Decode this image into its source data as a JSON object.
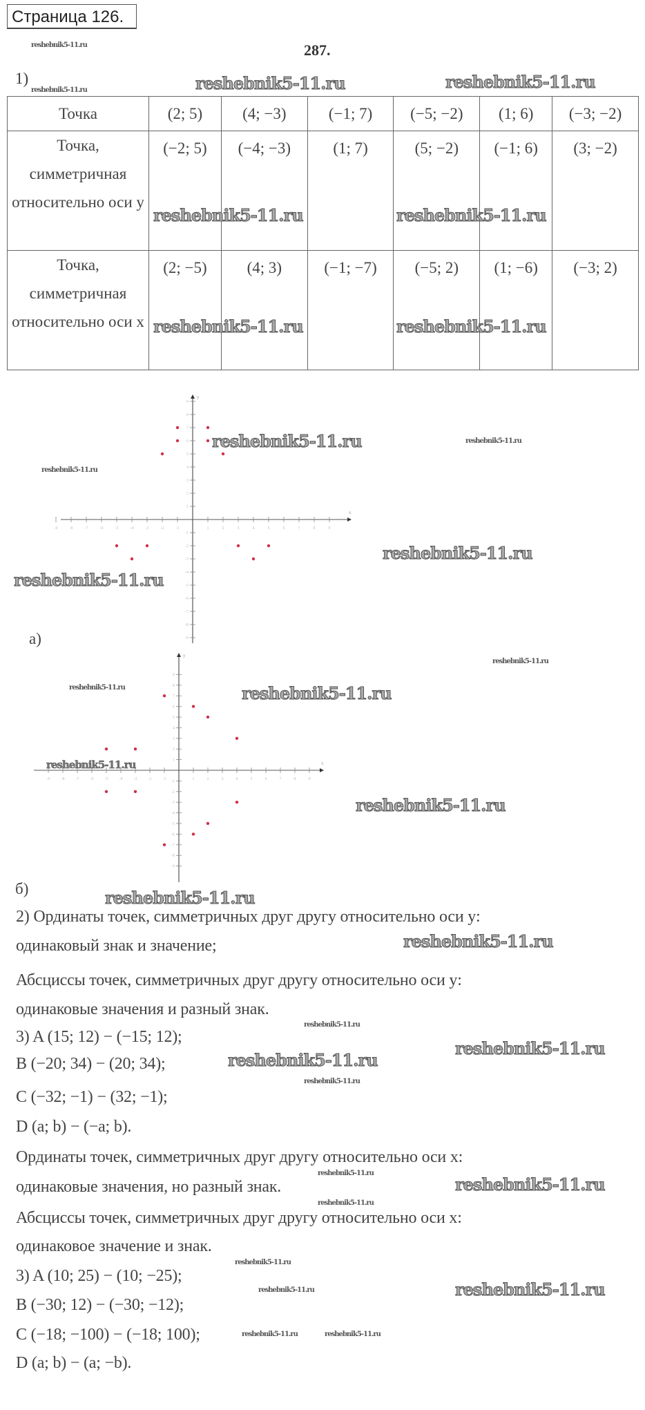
{
  "header": {
    "page_title": "Страница 126.",
    "task_number": "287."
  },
  "part1": {
    "label": "1)",
    "table": {
      "row_headers": [
        "Точка",
        "Точка, симметричная относительно оси y",
        "Точка, симметричная относительно оси x"
      ],
      "rows": [
        [
          "(2; 5)",
          "(4; −3)",
          "(−1; 7)",
          "(−5; −2)",
          "(1; 6)",
          "(−3; −2)"
        ],
        [
          "(−2; 5)",
          "(−4; −3)",
          "(1; 7)",
          "(5; −2)",
          "(−1; 6)",
          "(3; −2)"
        ],
        [
          "(2; −5)",
          "(4; 3)",
          "(−1; −7)",
          "(−5; 2)",
          "(1; −6)",
          "(−3; 2)"
        ]
      ]
    }
  },
  "chart_data": [
    {
      "type": "scatter",
      "label": "а)",
      "xlabel": "x",
      "ylabel": "y",
      "xlim": [
        -9,
        9
      ],
      "ylim": [
        -9,
        9
      ],
      "grid": false,
      "point_color": "#d0304a",
      "points": [
        [
          2,
          5
        ],
        [
          -2,
          5
        ],
        [
          -1,
          7
        ],
        [
          1,
          7
        ],
        [
          1,
          6
        ],
        [
          -1,
          6
        ],
        [
          -5,
          -2
        ],
        [
          5,
          -2
        ],
        [
          -4,
          -3
        ],
        [
          4,
          -3
        ],
        [
          -3,
          -2
        ],
        [
          3,
          -2
        ]
      ]
    },
    {
      "type": "scatter",
      "label": "б)",
      "xlabel": "x",
      "ylabel": "y",
      "xlim": [
        -9,
        9
      ],
      "ylim": [
        -9,
        9
      ],
      "grid": false,
      "point_color": "#d0304a",
      "points": [
        [
          2,
          5
        ],
        [
          2,
          -5
        ],
        [
          4,
          3
        ],
        [
          4,
          -3
        ],
        [
          -1,
          7
        ],
        [
          -1,
          -7
        ],
        [
          -5,
          -2
        ],
        [
          -5,
          2
        ],
        [
          1,
          6
        ],
        [
          1,
          -6
        ],
        [
          -3,
          -2
        ],
        [
          -3,
          2
        ]
      ]
    }
  ],
  "part2": {
    "lines": [
      "2) Ординаты точек, симметричных друг другу относительно оси y:",
      "одинаковый знак и значение;",
      "Абсциссы точек, симметричных друг другу относительно оси y:",
      "одинаковые значения и разный знак."
    ]
  },
  "part3a": {
    "lines": [
      "3) A (15; 12) − (−15; 12);",
      "B (−20; 34) − (20; 34);",
      "C (−32; −1) − (32; −1);",
      "D (a; b) − (−a; b)."
    ]
  },
  "part2x": {
    "lines": [
      "Ординаты точек, симметричных друг другу относительно оси x:",
      "одинаковые значения, но разный знак.",
      "Абсциссы точек, симметричных друг другу относительно оси x:",
      "одинаковое значение и знак."
    ]
  },
  "part3b": {
    "lines": [
      "3) A (10; 25) − (10; −25);",
      "B (−30; 12) − (−30; −12);",
      "C (−18; −100) − (−18; 100);",
      "D (a; b) − (a; −b)."
    ]
  },
  "watermark": "reshebnik5-11.ru"
}
